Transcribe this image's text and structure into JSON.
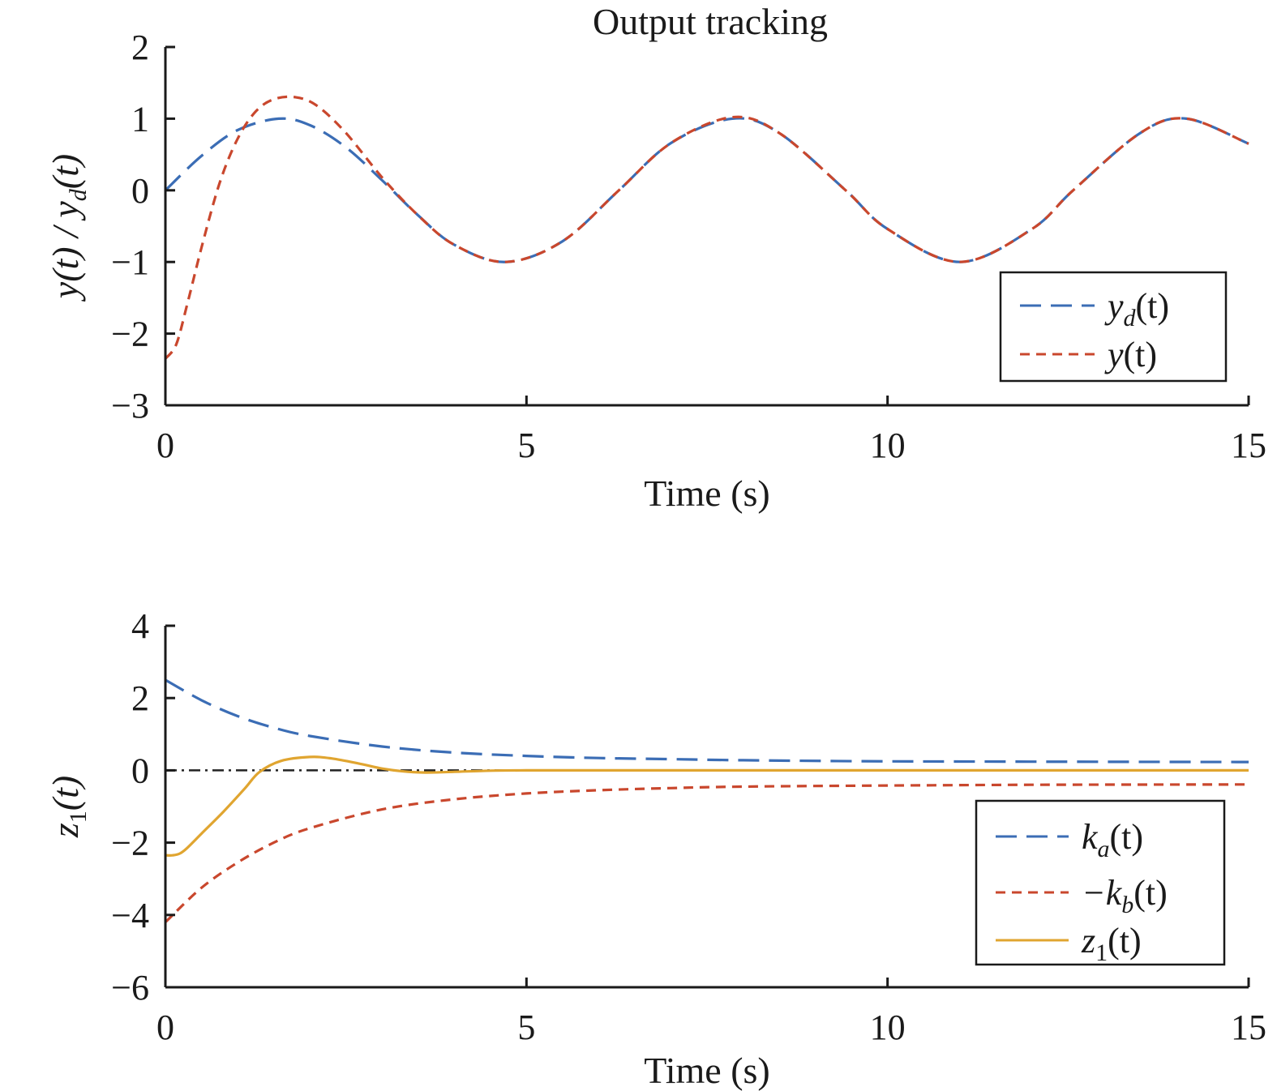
{
  "chart_data": [
    {
      "type": "line",
      "title": "Output tracking",
      "xlabel": "Time (s)",
      "ylabel": {
        "base": "y(t) / y",
        "sub": "d",
        "tail": "(t)"
      },
      "xlim": [
        0,
        15
      ],
      "ylim": [
        -3,
        2
      ],
      "xticks": [
        "0",
        "5",
        "10",
        "15"
      ],
      "yticks": [
        "2",
        "1",
        "0",
        "−1",
        "−2",
        "−3"
      ],
      "grid": false,
      "legend_position": "bottom-right",
      "series": [
        {
          "legend": {
            "base": "y",
            "sub": "d",
            "tail": "(t)"
          },
          "color": "#3b6db5",
          "dash": "long-dash",
          "x": [
            0,
            0.5,
            1.0,
            1.57,
            2.0,
            2.5,
            3.0,
            3.5,
            4.0,
            4.71,
            5.5,
            6.28,
            7.0,
            7.85,
            8.5,
            9.42,
            10.0,
            11.0,
            12.0,
            12.57,
            13.5,
            14.14,
            15.0
          ],
          "y": [
            0,
            0.48,
            0.84,
            1.0,
            0.91,
            0.6,
            0.14,
            -0.35,
            -0.76,
            -1.0,
            -0.71,
            0.0,
            0.66,
            1.0,
            0.8,
            0.0,
            -0.54,
            -1.0,
            -0.54,
            0.0,
            0.8,
            1.0,
            0.65
          ]
        },
        {
          "legend": {
            "base": "y",
            "sub": "",
            "tail": "(t)"
          },
          "color": "#c9472d",
          "dash": "short-dash",
          "x": [
            0,
            0.15,
            0.3,
            0.5,
            0.75,
            1.0,
            1.25,
            1.5,
            1.8,
            2.1,
            2.5,
            3.0,
            3.5,
            4.0,
            4.71,
            5.5,
            6.28,
            7.0,
            7.85,
            8.5,
            9.42,
            10.0,
            11.0,
            12.0,
            12.57,
            13.5,
            14.14,
            15.0
          ],
          "y": [
            -2.35,
            -2.15,
            -1.6,
            -0.8,
            0.1,
            0.72,
            1.1,
            1.27,
            1.3,
            1.18,
            0.8,
            0.18,
            -0.35,
            -0.76,
            -1.0,
            -0.71,
            0.0,
            0.66,
            1.02,
            0.8,
            0.0,
            -0.54,
            -1.0,
            -0.54,
            0.0,
            0.8,
            1.0,
            0.65
          ]
        }
      ]
    },
    {
      "type": "line",
      "title": "",
      "xlabel": "Time (s)",
      "ylabel": {
        "base": "z",
        "sub": "1",
        "tail": "(t)"
      },
      "xlim": [
        0,
        15
      ],
      "ylim": [
        -6,
        4
      ],
      "xticks": [
        "0",
        "5",
        "10",
        "15"
      ],
      "yticks": [
        "4",
        "2",
        "0",
        "−2",
        "−4",
        "−6"
      ],
      "grid": false,
      "legend_position": "bottom-right",
      "reference_line": {
        "y": 0,
        "color": "#222222",
        "dash": "dash-dot"
      },
      "series": [
        {
          "legend": {
            "base": "k",
            "sub": "a",
            "tail": "(t)"
          },
          "color": "#3b6db5",
          "dash": "long-dash",
          "x": [
            0,
            0.5,
            1.0,
            1.5,
            2.0,
            3.0,
            4.0,
            5.0,
            6.0,
            7.0,
            8.0,
            10.0,
            12.0,
            15.0
          ],
          "y": [
            2.5,
            1.94,
            1.5,
            1.18,
            0.95,
            0.66,
            0.49,
            0.4,
            0.34,
            0.31,
            0.28,
            0.25,
            0.24,
            0.23
          ]
        },
        {
          "legend": {
            "base": "−k",
            "sub": "b",
            "tail": "(t)"
          },
          "color": "#c9472d",
          "dash": "short-dash",
          "x": [
            0,
            0.5,
            1.0,
            1.5,
            2.0,
            3.0,
            4.0,
            5.0,
            6.0,
            7.0,
            8.0,
            10.0,
            12.0,
            15.0
          ],
          "y": [
            -4.2,
            -3.25,
            -2.55,
            -2.0,
            -1.6,
            -1.08,
            -0.8,
            -0.64,
            -0.55,
            -0.49,
            -0.45,
            -0.42,
            -0.4,
            -0.39
          ]
        },
        {
          "legend": {
            "base": "z",
            "sub": "1",
            "tail": "(t)"
          },
          "color": "#e0a530",
          "dash": "solid",
          "x": [
            0,
            0.1,
            0.2,
            0.3,
            0.5,
            0.8,
            1.1,
            1.3,
            1.6,
            2.0,
            2.3,
            2.7,
            3.0,
            3.3,
            3.6,
            4.0,
            4.5,
            5.0,
            6.0,
            8.0,
            10.0,
            12.0,
            15.0
          ],
          "y": [
            -2.35,
            -2.35,
            -2.3,
            -2.15,
            -1.75,
            -1.15,
            -0.5,
            -0.05,
            0.26,
            0.37,
            0.33,
            0.18,
            0.05,
            -0.03,
            -0.06,
            -0.04,
            -0.01,
            0.0,
            0.0,
            0.0,
            0.0,
            0.0,
            0.0
          ]
        }
      ]
    }
  ]
}
